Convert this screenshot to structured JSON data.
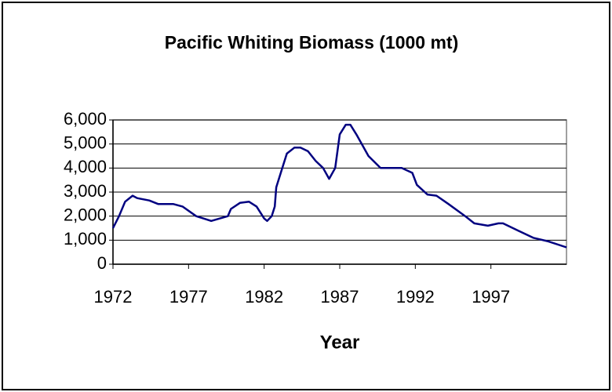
{
  "chart_data": {
    "type": "line",
    "title": "Pacific Whiting Biomass (1000 mt)",
    "x_label": "Year",
    "x": [
      1972.0,
      1972.4,
      1972.8,
      1973.3,
      1973.6,
      1974.4,
      1975.0,
      1976.0,
      1976.6,
      1977.5,
      1978.5,
      1979.6,
      1979.8,
      1980.4,
      1981.0,
      1981.5,
      1982.0,
      1982.2,
      1982.5,
      1982.7,
      1982.8,
      1983.2,
      1983.5,
      1984.0,
      1984.4,
      1984.9,
      1985.4,
      1985.9,
      1986.3,
      1986.7,
      1987.0,
      1987.4,
      1987.7,
      1988.1,
      1988.9,
      1989.7,
      1991.1,
      1991.8,
      1992.1,
      1992.8,
      1993.4,
      1994.2,
      1995.3,
      1995.9,
      1996.8,
      1997.5,
      1997.8,
      1998.8,
      1999.8,
      2000.8,
      2002.0
    ],
    "values": [
      1500,
      2000,
      2600,
      2850,
      2750,
      2650,
      2500,
      2500,
      2400,
      2000,
      1800,
      2000,
      2300,
      2550,
      2600,
      2400,
      1900,
      1800,
      2000,
      2400,
      3200,
      4000,
      4600,
      4850,
      4850,
      4700,
      4300,
      4000,
      3550,
      4000,
      5400,
      5800,
      5800,
      5400,
      4500,
      4000,
      4000,
      3800,
      3300,
      2900,
      2850,
      2500,
      2000,
      1700,
      1600,
      1700,
      1700,
      1400,
      1100,
      950,
      700
    ],
    "color": "#000080",
    "xlim": [
      1972,
      2002
    ],
    "xticks": [
      1972,
      1977,
      1982,
      1987,
      1992,
      1997
    ],
    "ylim": [
      0,
      6000
    ],
    "yticks": [
      0,
      {
        "value": 1000,
        "label": "1,000"
      },
      {
        "value": 2000,
        "label": "2,000"
      },
      {
        "value": 3000,
        "label": "3,000"
      },
      {
        "value": 4000,
        "label": "4,000"
      },
      {
        "value": 5000,
        "label": "5,000"
      },
      {
        "value": 6000,
        "label": "6,000"
      }
    ],
    "grid": true
  }
}
